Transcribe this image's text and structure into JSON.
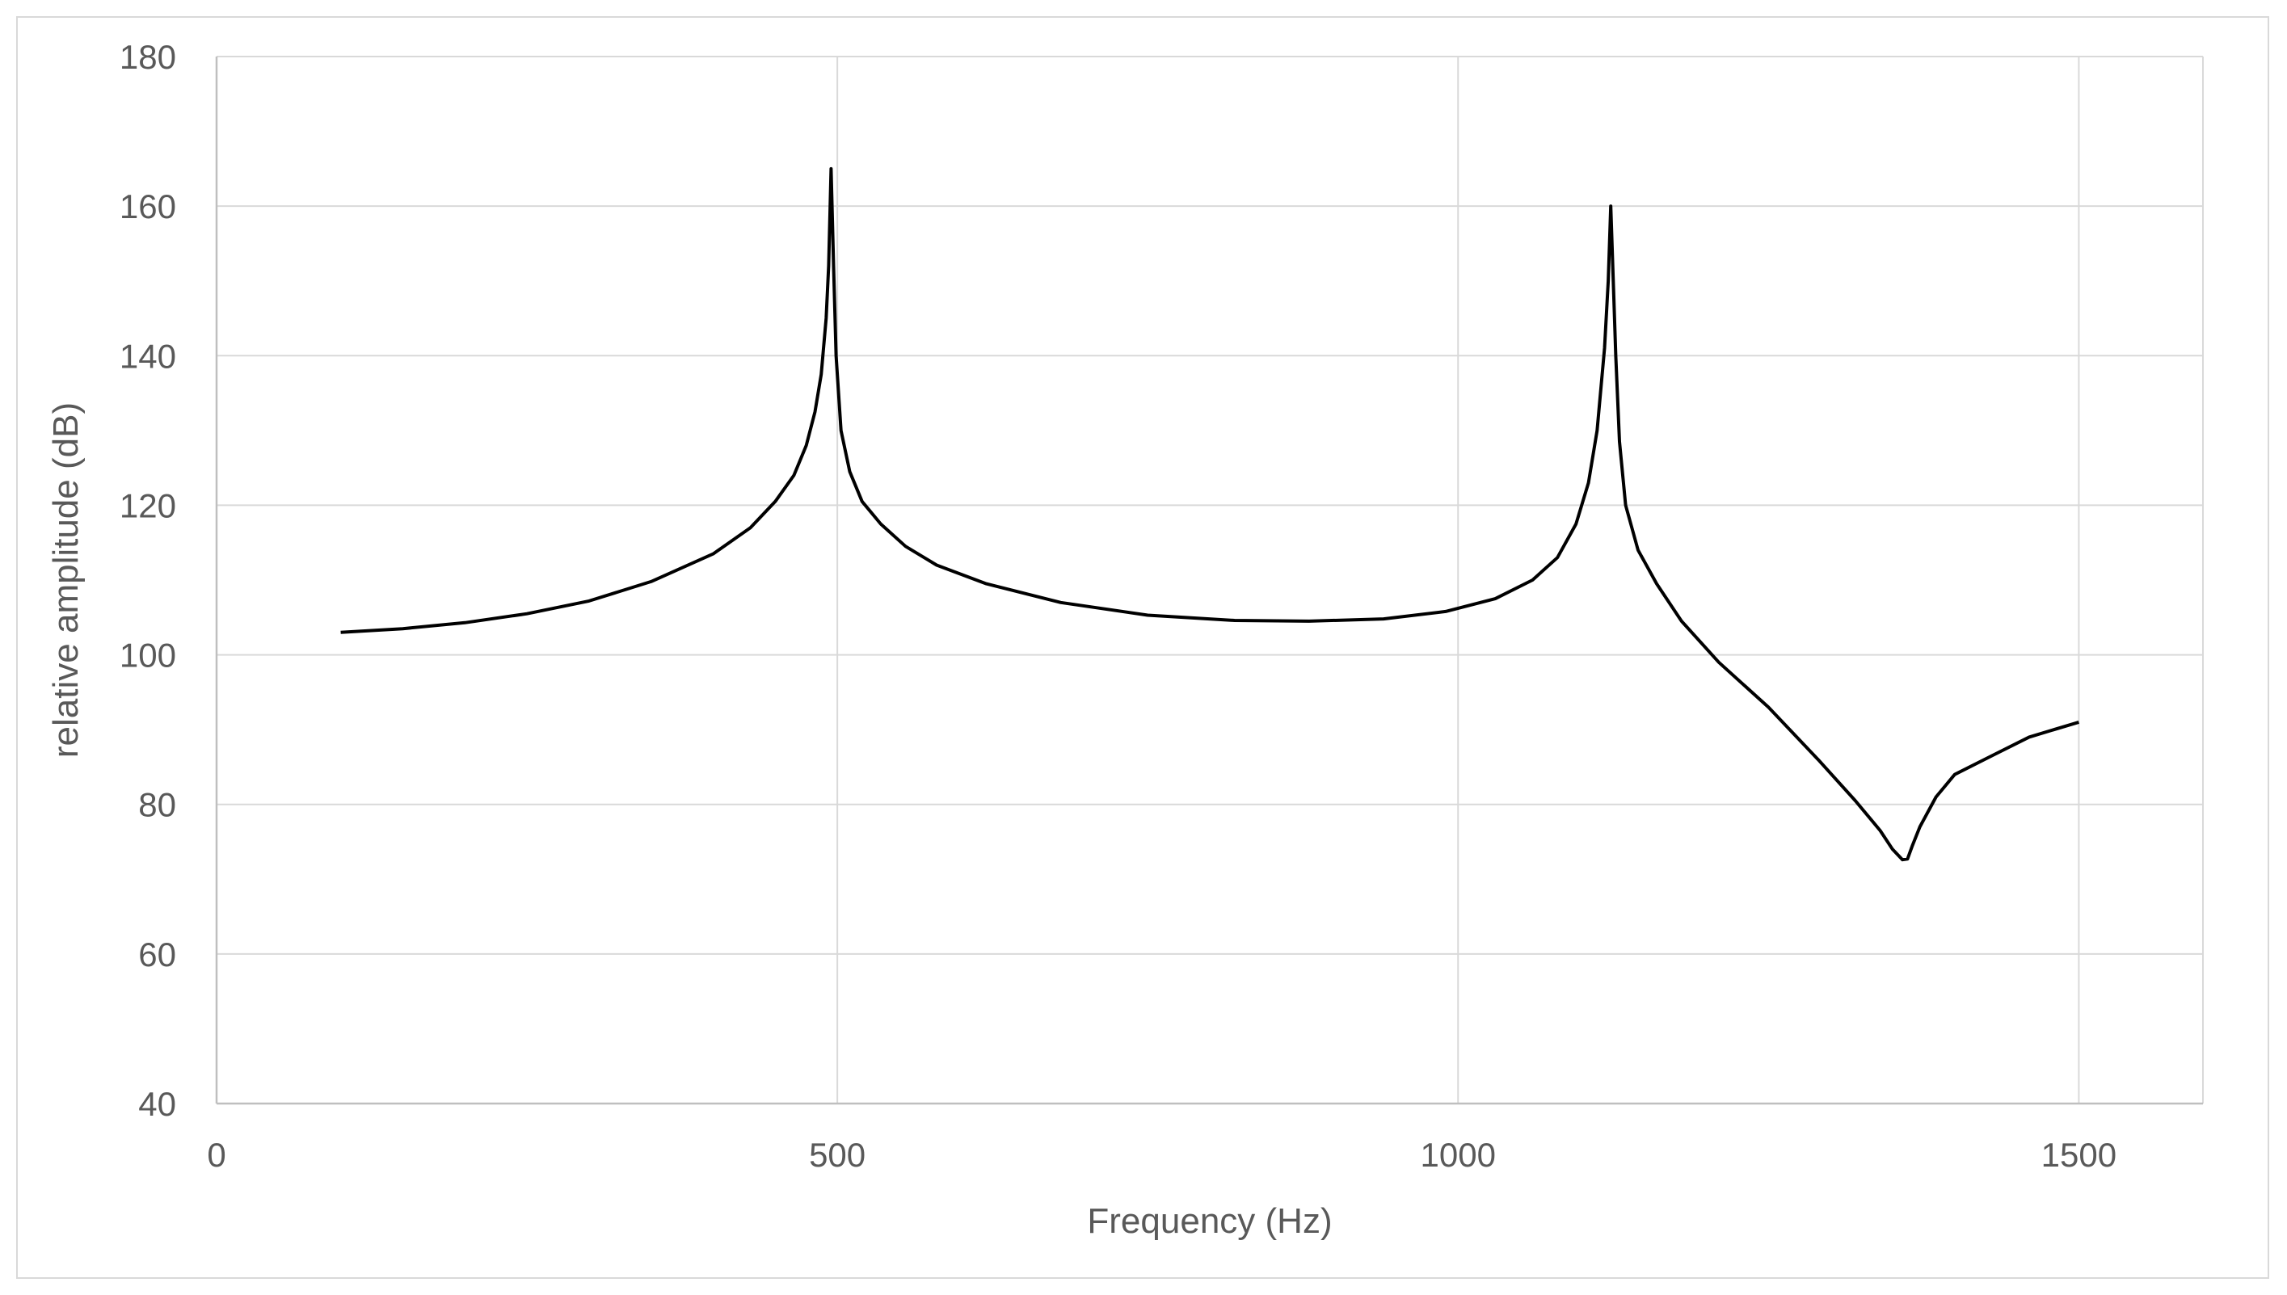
{
  "chart_data": {
    "type": "line",
    "title": "",
    "xlabel": "Frequency (Hz)",
    "ylabel": "relative amplitude (dB)",
    "xlim": [
      0,
      1600
    ],
    "ylim": [
      40,
      180
    ],
    "x_ticks": [
      0,
      500,
      1000,
      1500
    ],
    "y_ticks": [
      40,
      60,
      80,
      100,
      120,
      140,
      160,
      180
    ],
    "grid": true,
    "legend": "none",
    "series": [
      {
        "color": "#000000",
        "x": [
          100,
          150,
          200,
          250,
          300,
          350,
          400,
          430,
          450,
          465,
          475,
          482,
          487,
          491,
          493,
          495,
          497,
          499,
          503,
          510,
          520,
          535,
          555,
          580,
          620,
          680,
          750,
          820,
          880,
          940,
          990,
          1030,
          1060,
          1080,
          1095,
          1105,
          1112,
          1118,
          1121,
          1123,
          1125,
          1127,
          1130,
          1135,
          1145,
          1160,
          1180,
          1210,
          1250,
          1290,
          1320,
          1340,
          1350,
          1358,
          1362,
          1366,
          1372,
          1385,
          1400,
          1430,
          1460,
          1500
        ],
        "y": [
          103,
          103.5,
          104.3,
          105.5,
          107.2,
          109.8,
          113.5,
          117,
          120.5,
          124,
          128,
          132.5,
          137.5,
          145,
          152,
          165,
          152,
          140,
          130,
          124.5,
          120.5,
          117.5,
          114.5,
          112,
          109.5,
          107,
          105.3,
          104.6,
          104.5,
          104.8,
          105.8,
          107.5,
          110,
          113,
          117.5,
          123,
          130,
          141,
          150,
          160,
          150,
          140,
          128.5,
          120,
          114,
          109.5,
          104.5,
          99,
          93,
          86,
          80.5,
          76.5,
          74,
          72.6,
          72.7,
          74.5,
          77,
          81,
          84,
          86.5,
          89,
          91
        ]
      }
    ]
  }
}
